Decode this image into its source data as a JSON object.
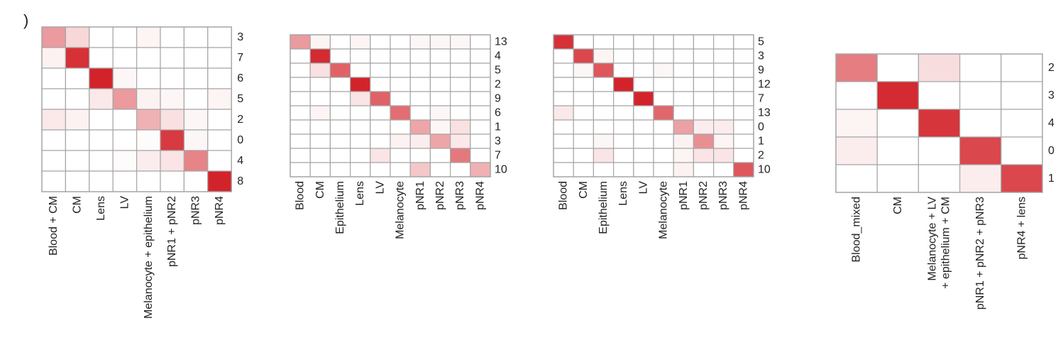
{
  "panel_marker": ")",
  "colors": {
    "base": "#d21f26",
    "grid": "#a6a6a6",
    "text": "#222222"
  },
  "chart_data": [
    {
      "type": "heatmap",
      "title": "",
      "columns": [
        "Blood + CM",
        "CM",
        "Lens",
        "LV",
        "Melanocyte + epithelium",
        "pNR1 + pNR2",
        "pNR3",
        "pNR4"
      ],
      "rows": [
        "3",
        "7",
        "6",
        "5",
        "2",
        "0",
        "4",
        "8"
      ],
      "values": [
        [
          0.45,
          0.18,
          0,
          0,
          0.05,
          0,
          0,
          0
        ],
        [
          0.06,
          0.92,
          0,
          0,
          0,
          0,
          0,
          0
        ],
        [
          0,
          0,
          0.98,
          0.04,
          0,
          0,
          0,
          0
        ],
        [
          0,
          0,
          0.1,
          0.45,
          0.06,
          0.04,
          0,
          0.05
        ],
        [
          0.1,
          0.06,
          0,
          0,
          0.35,
          0.14,
          0.04,
          0
        ],
        [
          0,
          0,
          0,
          0,
          0.02,
          0.88,
          0.04,
          0
        ],
        [
          0,
          0,
          0,
          0.02,
          0.08,
          0.12,
          0.55,
          0
        ],
        [
          0,
          0,
          0,
          0,
          0,
          0,
          0,
          0.98
        ]
      ]
    },
    {
      "type": "heatmap",
      "title": "",
      "columns": [
        "Blood",
        "CM",
        "Epithelium",
        "Lens",
        "LV",
        "Melanocyte",
        "pNR1",
        "pNR2",
        "pNR3",
        "pNR4"
      ],
      "rows": [
        "13",
        "4",
        "5",
        "2",
        "9",
        "6",
        "1",
        "3",
        "7",
        "10"
      ],
      "values": [
        [
          0.45,
          0.05,
          0,
          0.05,
          0,
          0,
          0.04,
          0.04,
          0.04,
          0
        ],
        [
          0,
          0.95,
          0,
          0,
          0,
          0,
          0,
          0,
          0,
          0
        ],
        [
          0,
          0.14,
          0.7,
          0,
          0,
          0,
          0,
          0,
          0,
          0
        ],
        [
          0,
          0,
          0,
          0.98,
          0,
          0,
          0,
          0,
          0,
          0
        ],
        [
          0,
          0,
          0,
          0.12,
          0.7,
          0,
          0,
          0,
          0,
          0
        ],
        [
          0,
          0.05,
          0,
          0,
          0,
          0.65,
          0,
          0.04,
          0,
          0
        ],
        [
          0,
          0,
          0,
          0,
          0,
          0,
          0.4,
          0.04,
          0.14,
          0
        ],
        [
          0,
          0,
          0,
          0,
          0,
          0.06,
          0.08,
          0.4,
          0.1,
          0
        ],
        [
          0,
          0,
          0,
          0,
          0.12,
          0,
          0,
          0,
          0.6,
          0
        ],
        [
          0,
          0,
          0,
          0,
          0,
          0,
          0.25,
          0,
          0,
          0.35
        ]
      ]
    },
    {
      "type": "heatmap",
      "title": "",
      "columns": [
        "Blood",
        "CM",
        "Epithelium",
        "Lens",
        "LV",
        "Melanocyte",
        "pNR1",
        "pNR2",
        "pNR3",
        "pNR4"
      ],
      "rows": [
        "5",
        "3",
        "9",
        "12",
        "7",
        "13",
        "0",
        "1",
        "2",
        "10"
      ],
      "values": [
        [
          0.92,
          0,
          0,
          0,
          0,
          0,
          0,
          0,
          0,
          0
        ],
        [
          0,
          0.82,
          0.05,
          0,
          0,
          0,
          0,
          0,
          0,
          0
        ],
        [
          0,
          0.04,
          0.75,
          0,
          0,
          0.04,
          0,
          0,
          0,
          0
        ],
        [
          0,
          0,
          0,
          0.98,
          0,
          0,
          0,
          0,
          0,
          0
        ],
        [
          0,
          0,
          0,
          0,
          0.98,
          0,
          0,
          0,
          0,
          0
        ],
        [
          0.1,
          0,
          0,
          0,
          0,
          0.68,
          0,
          0,
          0,
          0
        ],
        [
          0,
          0,
          0,
          0,
          0,
          0,
          0.42,
          0.08,
          0.08,
          0
        ],
        [
          0,
          0,
          0.04,
          0,
          0,
          0,
          0.06,
          0.5,
          0.05,
          0
        ],
        [
          0,
          0,
          0.12,
          0,
          0,
          0,
          0.05,
          0.12,
          0.12,
          0
        ],
        [
          0,
          0,
          0,
          0,
          0,
          0,
          0.06,
          0,
          0,
          0.75
        ]
      ]
    },
    {
      "type": "heatmap",
      "title": "",
      "columns": [
        "Blood_mixed",
        "CM",
        "Melanocyte + LV|+ epithelium + CM",
        "pNR1 + pNR2 + pNR3",
        "pNR4 + lens"
      ],
      "rows": [
        "2",
        "3",
        "4",
        "0",
        "1"
      ],
      "values": [
        [
          0.58,
          0,
          0.15,
          0,
          0
        ],
        [
          0,
          0.95,
          0,
          0,
          0
        ],
        [
          0.05,
          0,
          0.9,
          0,
          0
        ],
        [
          0.08,
          0,
          0,
          0.82,
          0
        ],
        [
          0,
          0,
          0,
          0.08,
          0.82
        ]
      ]
    }
  ]
}
